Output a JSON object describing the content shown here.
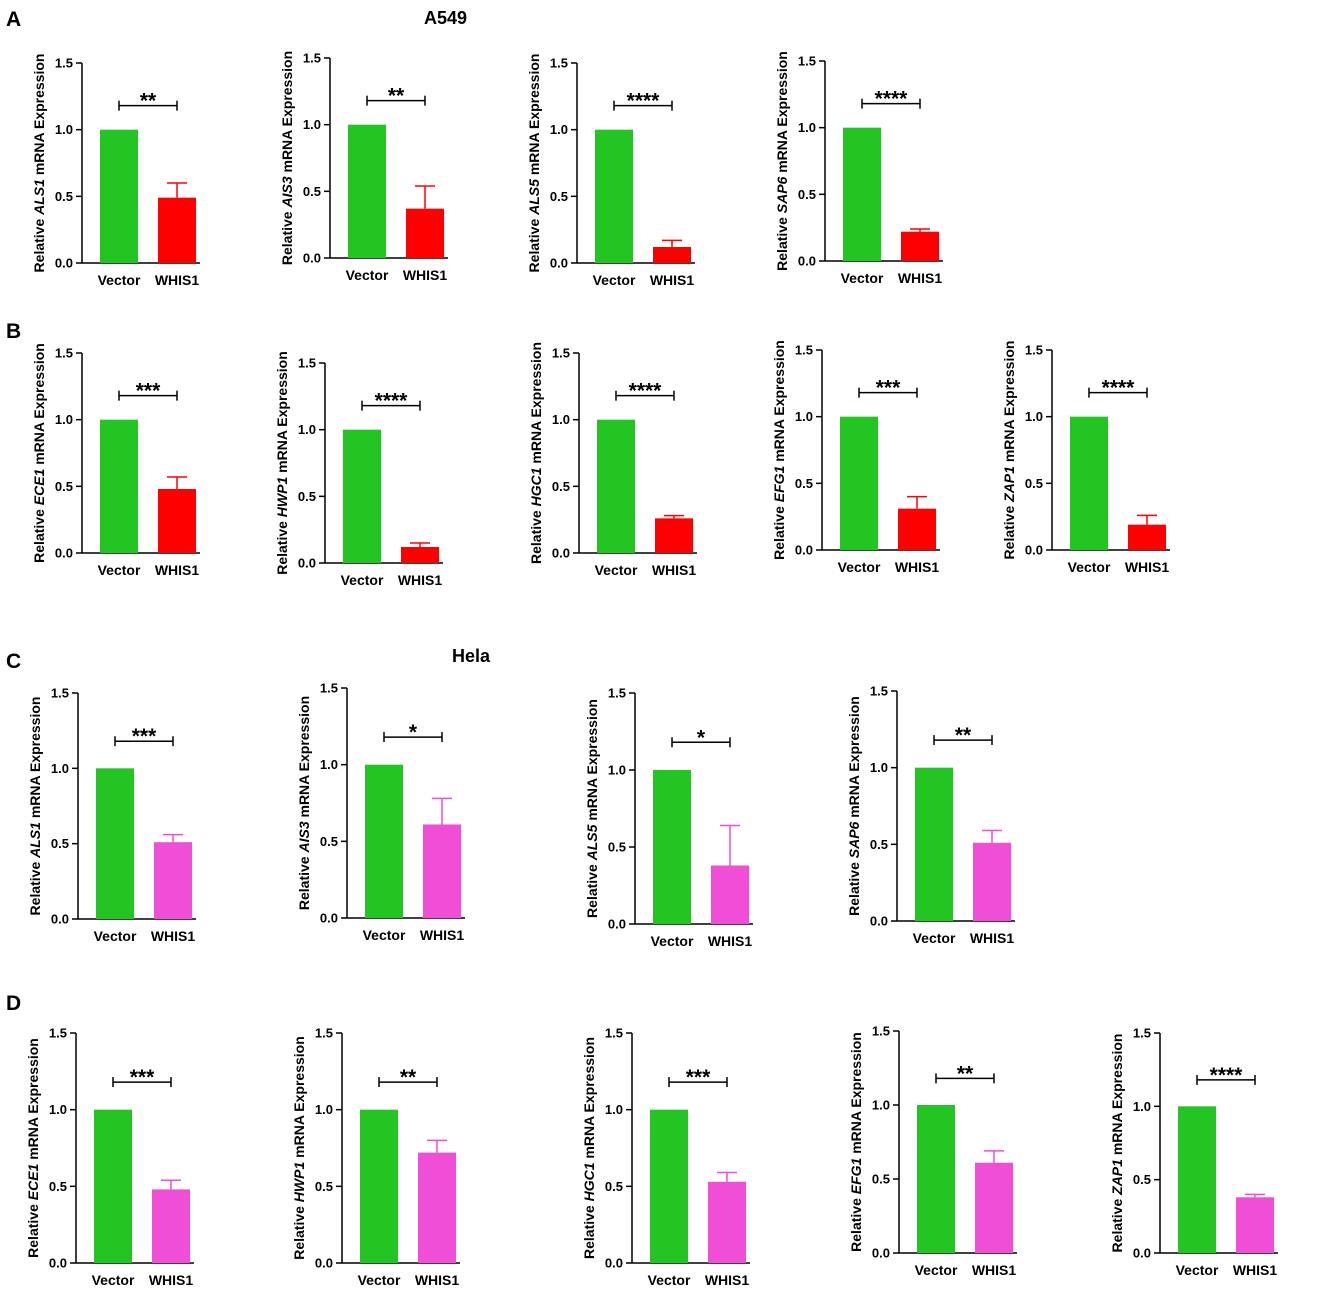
{
  "figure": {
    "panels": {
      "A": "A",
      "B": "B",
      "C": "C",
      "D": "D"
    },
    "cell_lines": {
      "a549": "A549",
      "hela": "Hela"
    }
  },
  "colors": {
    "vector": "#22c522",
    "whis1_a549": "#ff0000",
    "whis1_hela": "#f04ed6",
    "axis": "#000000"
  },
  "chart_data": [
    {
      "id": "A1",
      "type": "bar",
      "title": "",
      "xlabel": "",
      "ylabel": {
        "prefix": "Relative ",
        "gene": "ALS1",
        "suffix": " mRNA Expression"
      },
      "ylim": [
        0,
        1.5
      ],
      "yticks": [
        "0.0",
        "0.5",
        "1.0",
        "1.5"
      ],
      "categories": [
        "Vector",
        "WHIS1"
      ],
      "values": [
        1.0,
        0.49
      ],
      "errors": [
        0,
        0.11
      ],
      "significance": "**"
    },
    {
      "id": "A2",
      "type": "bar",
      "title": "",
      "xlabel": "",
      "ylabel": {
        "prefix": "Relative ",
        "gene": "AIS3",
        "suffix": " mRNA Expression"
      },
      "ylim": [
        0,
        1.5
      ],
      "yticks": [
        "0.0",
        "0.5",
        "1.0",
        "1.5"
      ],
      "categories": [
        "Vector",
        "WHIS1"
      ],
      "values": [
        1.0,
        0.37
      ],
      "errors": [
        0,
        0.17
      ],
      "significance": "**"
    },
    {
      "id": "A3",
      "type": "bar",
      "title": "",
      "xlabel": "",
      "ylabel": {
        "prefix": "Relative ",
        "gene": "ALS5",
        "suffix": " mRNA Expression"
      },
      "ylim": [
        0,
        1.5
      ],
      "yticks": [
        "0.0",
        "0.5",
        "1.0",
        "1.5"
      ],
      "categories": [
        "Vector",
        "WHIS1"
      ],
      "values": [
        1.0,
        0.12
      ],
      "errors": [
        0,
        0.05
      ],
      "significance": "****"
    },
    {
      "id": "A4",
      "type": "bar",
      "title": "",
      "xlabel": "",
      "ylabel": {
        "prefix": "Relative ",
        "gene": "SAP6",
        "suffix": " mRNA Expression"
      },
      "ylim": [
        0,
        1.5
      ],
      "yticks": [
        "0.0",
        "0.5",
        "1.0",
        "1.5"
      ],
      "categories": [
        "Vector",
        "WHIS1"
      ],
      "values": [
        1.0,
        0.22
      ],
      "errors": [
        0,
        0.02
      ],
      "significance": "****"
    },
    {
      "id": "B1",
      "type": "bar",
      "title": "",
      "xlabel": "",
      "ylabel": {
        "prefix": "Relative ",
        "gene": "ECE1",
        "suffix": "  mRNA Expression"
      },
      "ylim": [
        0,
        1.5
      ],
      "yticks": [
        "0.0",
        "0.5",
        "1.0",
        "1.5"
      ],
      "categories": [
        "Vector",
        "WHIS1"
      ],
      "values": [
        1.0,
        0.48
      ],
      "errors": [
        0,
        0.09
      ],
      "significance": "***"
    },
    {
      "id": "B2",
      "type": "bar",
      "title": "",
      "xlabel": "",
      "ylabel": {
        "prefix": "Relative ",
        "gene": "HWP1",
        "suffix": " mRNA Expression"
      },
      "ylim": [
        0,
        1.5
      ],
      "yticks": [
        "0.0",
        "0.5",
        "1.0",
        "1.5"
      ],
      "categories": [
        "Vector",
        "WHIS1"
      ],
      "values": [
        1.0,
        0.12
      ],
      "errors": [
        0,
        0.03
      ],
      "significance": "****"
    },
    {
      "id": "B3",
      "type": "bar",
      "title": "",
      "xlabel": "",
      "ylabel": {
        "prefix": "Relative ",
        "gene": "HGC1",
        "suffix": " mRNA Expression"
      },
      "ylim": [
        0,
        1.5
      ],
      "yticks": [
        "0.0",
        "0.5",
        "1.0",
        "1.5"
      ],
      "categories": [
        "Vector",
        "WHIS1"
      ],
      "values": [
        1.0,
        0.26
      ],
      "errors": [
        0,
        0.02
      ],
      "significance": "****"
    },
    {
      "id": "B4",
      "type": "bar",
      "title": "",
      "xlabel": "",
      "ylabel": {
        "prefix": "Relative ",
        "gene": "EFG1",
        "suffix": " mRNA Expression"
      },
      "ylim": [
        0,
        1.5
      ],
      "yticks": [
        "0.0",
        "0.5",
        "1.0",
        "1.5"
      ],
      "categories": [
        "Vector",
        "WHIS1"
      ],
      "values": [
        1.0,
        0.31
      ],
      "errors": [
        0,
        0.09
      ],
      "significance": "***"
    },
    {
      "id": "B5",
      "type": "bar",
      "title": "",
      "xlabel": "",
      "ylabel": {
        "prefix": "Relative ",
        "gene": "ZAP1",
        "suffix": " mRNA Expression"
      },
      "ylim": [
        0,
        1.5
      ],
      "yticks": [
        "0.0",
        "0.5",
        "1.0",
        "1.5"
      ],
      "categories": [
        "Vector",
        "WHIS1"
      ],
      "values": [
        1.0,
        0.19
      ],
      "errors": [
        0,
        0.07
      ],
      "significance": "****"
    },
    {
      "id": "C1",
      "type": "bar",
      "title": "",
      "xlabel": "",
      "ylabel": {
        "prefix": "Relative ",
        "gene": "ALS1",
        "suffix": " mRNA Expression"
      },
      "ylim": [
        0,
        1.5
      ],
      "yticks": [
        "0.0",
        "0.5",
        "1.0",
        "1.5"
      ],
      "categories": [
        "Vector",
        "WHIS1"
      ],
      "values": [
        1.0,
        0.51
      ],
      "errors": [
        0,
        0.05
      ],
      "significance": "***"
    },
    {
      "id": "C2",
      "type": "bar",
      "title": "",
      "xlabel": "",
      "ylabel": {
        "prefix": "Relative ",
        "gene": "AIS3",
        "suffix": " mRNA Expression"
      },
      "ylim": [
        0,
        1.5
      ],
      "yticks": [
        "0.0",
        "0.5",
        "1.0",
        "1.5"
      ],
      "categories": [
        "Vector",
        "WHIS1"
      ],
      "values": [
        1.0,
        0.61
      ],
      "errors": [
        0,
        0.17
      ],
      "significance": "*"
    },
    {
      "id": "C3",
      "type": "bar",
      "title": "",
      "xlabel": "",
      "ylabel": {
        "prefix": "Relative ",
        "gene": "ALS5",
        "suffix": " mRNA Expression"
      },
      "ylim": [
        0,
        1.5
      ],
      "yticks": [
        "0.0",
        "0.5",
        "1.0",
        "1.5"
      ],
      "categories": [
        "Vector",
        "WHIS1"
      ],
      "values": [
        1.0,
        0.38
      ],
      "errors": [
        0,
        0.26
      ],
      "significance": "*"
    },
    {
      "id": "C4",
      "type": "bar",
      "title": "",
      "xlabel": "",
      "ylabel": {
        "prefix": "Relative ",
        "gene": "SAP6",
        "suffix": " mRNA Expression"
      },
      "ylim": [
        0,
        1.5
      ],
      "yticks": [
        "0.0",
        "0.5",
        "1.0",
        "1.5"
      ],
      "categories": [
        "Vector",
        "WHIS1"
      ],
      "values": [
        1.0,
        0.51
      ],
      "errors": [
        0,
        0.08
      ],
      "significance": "**"
    },
    {
      "id": "D1",
      "type": "bar",
      "title": "",
      "xlabel": "",
      "ylabel": {
        "prefix": "Relative ",
        "gene": "ECE1",
        "suffix": "  mRNA Expression"
      },
      "ylim": [
        0,
        1.5
      ],
      "yticks": [
        "0.0",
        "0.5",
        "1.0",
        "1.5"
      ],
      "categories": [
        "Vector",
        "WHIS1"
      ],
      "values": [
        1.0,
        0.48
      ],
      "errors": [
        0,
        0.06
      ],
      "significance": "***"
    },
    {
      "id": "D2",
      "type": "bar",
      "title": "",
      "xlabel": "",
      "ylabel": {
        "prefix": "Relative ",
        "gene": "HWP1",
        "suffix": " mRNA Expression"
      },
      "ylim": [
        0,
        1.5
      ],
      "yticks": [
        "0.0",
        "0.5",
        "1.0",
        "1.5"
      ],
      "categories": [
        "Vector",
        "WHIS1"
      ],
      "values": [
        1.0,
        0.72
      ],
      "errors": [
        0,
        0.08
      ],
      "significance": "**"
    },
    {
      "id": "D3",
      "type": "bar",
      "title": "",
      "xlabel": "",
      "ylabel": {
        "prefix": "Relative ",
        "gene": "HGC1",
        "suffix": " mRNA Expression"
      },
      "ylim": [
        0,
        1.5
      ],
      "yticks": [
        "0.0",
        "0.5",
        "1.0",
        "1.5"
      ],
      "categories": [
        "Vector",
        "WHIS1"
      ],
      "values": [
        1.0,
        0.53
      ],
      "errors": [
        0,
        0.06
      ],
      "significance": "***"
    },
    {
      "id": "D4",
      "type": "bar",
      "title": "",
      "xlabel": "",
      "ylabel": {
        "prefix": "Relative ",
        "gene": "EFG1",
        "suffix": " mRNA Expression"
      },
      "ylim": [
        0,
        1.5
      ],
      "yticks": [
        "0.0",
        "0.5",
        "1.0",
        "1.5"
      ],
      "categories": [
        "Vector",
        "WHIS1"
      ],
      "values": [
        1.0,
        0.61
      ],
      "errors": [
        0,
        0.08
      ],
      "significance": "**"
    },
    {
      "id": "D5",
      "type": "bar",
      "title": "",
      "xlabel": "",
      "ylabel": {
        "prefix": "Relative ",
        "gene": "ZAP1",
        "suffix": " mRNA Expression"
      },
      "ylim": [
        0,
        1.5
      ],
      "yticks": [
        "0.0",
        "0.5",
        "1.0",
        "1.5"
      ],
      "categories": [
        "Vector",
        "WHIS1"
      ],
      "values": [
        1.0,
        0.38
      ],
      "errors": [
        0,
        0.02
      ],
      "significance": "****"
    }
  ]
}
